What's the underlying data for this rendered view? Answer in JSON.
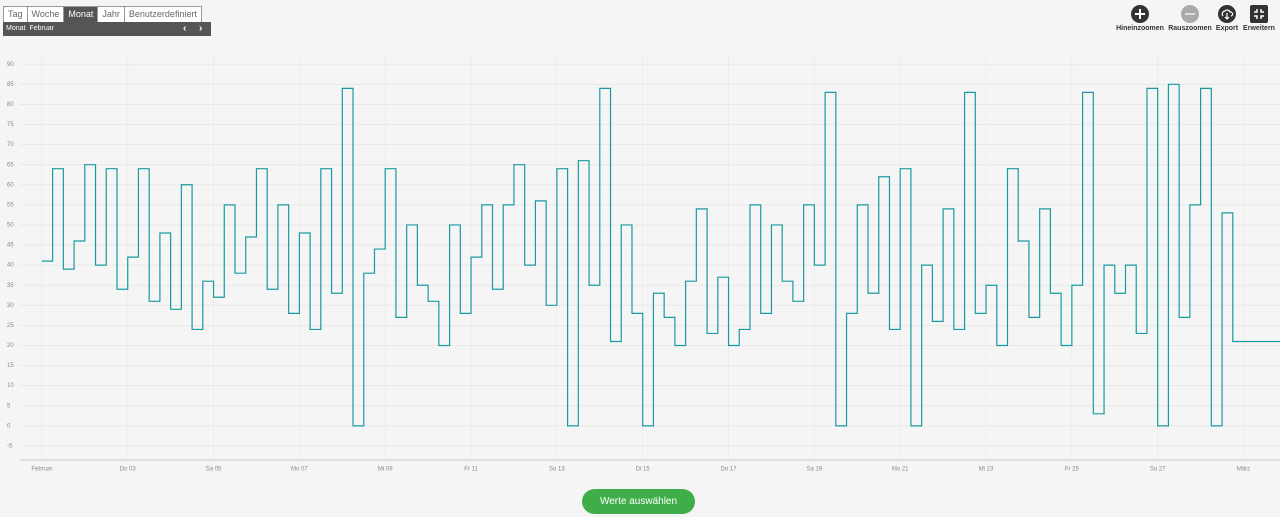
{
  "toolbar": {
    "tabs": [
      "Tag",
      "Woche",
      "Monat",
      "Jahr",
      "Benutzerdefiniert"
    ],
    "period_label": "Monat",
    "period_value": "Februar",
    "actions": [
      "Hineinzoomen",
      "Rauszoomen",
      "Export",
      "Erweitern"
    ]
  },
  "button": "Werte auswählen",
  "chart_data": {
    "type": "line",
    "step": true,
    "grid": true,
    "x": [
      1,
      1.25,
      1.5,
      1.75,
      2,
      2.25,
      2.5,
      2.75,
      3,
      3.25,
      3.5,
      3.75,
      4,
      4.25,
      4.5,
      4.75,
      5,
      5.25,
      5.5,
      5.75,
      6,
      6.25,
      6.5,
      6.75,
      7,
      7.25,
      7.5,
      7.75,
      8,
      8.25,
      8.5,
      8.75,
      9,
      9.25,
      9.5,
      9.75,
      10,
      10.25,
      10.5,
      10.75,
      11,
      11.25,
      11.5,
      11.75,
      12,
      12.25,
      12.5,
      12.75,
      13,
      13.25,
      13.5,
      13.75,
      14,
      14.25,
      14.5,
      14.75,
      15,
      15.25,
      15.5,
      15.75,
      16,
      16.25,
      16.5,
      16.75,
      17,
      17.25,
      17.5,
      17.75,
      18,
      18.25,
      18.5,
      18.75,
      19,
      19.25,
      19.5,
      19.75,
      20,
      20.25,
      20.5,
      20.75,
      21,
      21.25,
      21.5,
      21.75,
      22,
      22.25,
      22.5,
      22.75,
      23,
      23.25,
      23.5,
      23.75,
      24,
      24.25,
      24.5,
      24.75,
      25,
      25.25,
      25.5,
      25.75,
      26,
      26.25,
      26.5,
      26.75,
      27,
      27.25,
      27.5,
      27.75,
      28,
      28.25,
      28.5,
      28.75,
      29.85
    ],
    "series": [
      {
        "color": "#1a9aa0",
        "values": [
          41,
          64,
          39,
          46,
          65,
          40,
          64,
          34,
          42,
          64,
          31,
          48,
          29,
          60,
          24,
          36,
          32,
          55,
          38,
          47,
          64,
          34,
          55,
          28,
          48,
          24,
          64,
          33,
          84,
          0,
          38,
          44,
          64,
          27,
          50,
          35,
          31,
          20,
          50,
          28,
          42,
          55,
          34,
          55,
          65,
          40,
          56,
          30,
          64,
          0,
          66,
          35,
          84,
          21,
          50,
          28,
          0,
          33,
          27,
          20,
          36,
          54,
          23,
          37,
          20,
          24,
          55,
          28,
          50,
          36,
          31,
          55,
          40,
          83,
          0,
          28,
          55,
          33,
          62,
          24,
          64,
          0,
          40,
          26,
          54,
          24,
          83,
          28,
          35,
          20,
          64,
          46,
          27,
          54,
          33,
          20,
          35,
          83,
          3,
          40,
          33,
          40,
          23,
          84,
          0,
          85,
          27,
          55,
          84,
          0,
          53,
          21,
          21
        ]
      }
    ],
    "xlim": [
      0.49,
      29.85
    ],
    "ylim": [
      -8.5,
      92.3
    ],
    "xticks": [
      {
        "value": 1,
        "label": "Februar"
      },
      {
        "value": 3,
        "label": "Do 03"
      },
      {
        "value": 5,
        "label": "Sa 05"
      },
      {
        "value": 7,
        "label": "Mo 07"
      },
      {
        "value": 9,
        "label": "Mi 09"
      },
      {
        "value": 11,
        "label": "Fr 11"
      },
      {
        "value": 13,
        "label": "So 13"
      },
      {
        "value": 15,
        "label": "Di 15"
      },
      {
        "value": 17,
        "label": "Do 17"
      },
      {
        "value": 19,
        "label": "Sa 19"
      },
      {
        "value": 21,
        "label": "Mo 21"
      },
      {
        "value": 23,
        "label": "Mi 23"
      },
      {
        "value": 25,
        "label": "Fr 25"
      },
      {
        "value": 27,
        "label": "So 27"
      },
      {
        "value": 29,
        "label": "März"
      }
    ],
    "yticks": [
      -5,
      0,
      5,
      10,
      15,
      20,
      25,
      30,
      35,
      40,
      45,
      50,
      55,
      60,
      65,
      70,
      75,
      80,
      85,
      90
    ]
  }
}
